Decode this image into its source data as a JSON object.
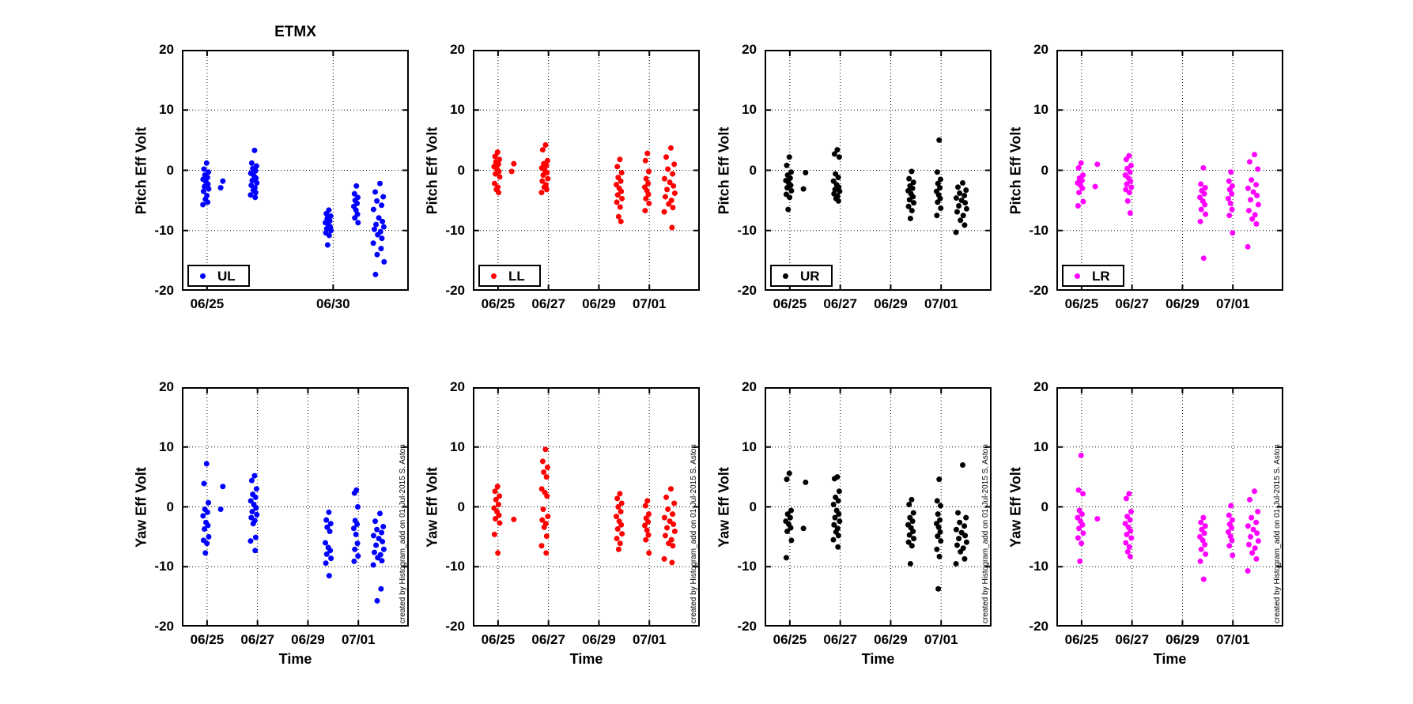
{
  "figure": {
    "title": "ETMX",
    "background": "#ffffff",
    "credit": "created by Histogram_add on 01-Jul-2015 S. Aston"
  },
  "axes": {
    "ylim": [
      -20,
      20
    ],
    "yticks": [
      {
        "v": 20,
        "label": "20"
      },
      {
        "v": 10,
        "label": "10"
      },
      {
        "v": 0,
        "label": "0"
      },
      {
        "v": -10,
        "label": "-10"
      },
      {
        "v": -20,
        "label": "-20"
      }
    ],
    "ygrid": [
      10,
      0,
      -10
    ],
    "xlim": [
      24,
      33
    ],
    "xlabel": "Time",
    "xtick_sets": {
      "two_day": [
        {
          "v": 25,
          "label": "06/25"
        },
        {
          "v": 27,
          "label": "06/27"
        },
        {
          "v": 29,
          "label": "06/29"
        },
        {
          "v": 31,
          "label": "07/01"
        }
      ],
      "five_day": [
        {
          "v": 25,
          "label": "06/25"
        },
        {
          "v": 30,
          "label": "06/30"
        }
      ]
    }
  },
  "chart_data": [
    {
      "type": "scatter",
      "name": "pitch-ul",
      "title": "ETMX",
      "series": "UL",
      "color": "#0000ff",
      "ylabel": "Pitch Eff Volt",
      "xticks": "five_day",
      "legend": true,
      "xlabel": false,
      "credit": false,
      "clusters": [
        {
          "cx": 24.95,
          "dx": 0.12,
          "y": [
            1.2,
            0.2,
            -0.3,
            -0.8,
            -1.2,
            -1.5,
            -1.9,
            -2.3,
            -2.7,
            -3.1,
            -3.5,
            -4.2,
            -4.8,
            -5.3,
            -5.7
          ]
        },
        {
          "cx": 25.6,
          "dx": 0.1,
          "y": [
            -1.8,
            -2.9
          ]
        },
        {
          "cx": 26.85,
          "dx": 0.13,
          "y": [
            3.3,
            1.2,
            0.7,
            0.3,
            -0.1,
            -0.5,
            -0.9,
            -1.3,
            -1.7,
            -2.1,
            -2.5,
            -2.9,
            -3.3,
            -3.7,
            -4.1,
            -4.5
          ]
        },
        {
          "cx": 29.8,
          "dx": 0.12,
          "y": [
            -6.6,
            -7.2,
            -7.6,
            -8.0,
            -8.4,
            -8.7,
            -9.0,
            -9.4,
            -9.7,
            -10.0,
            -10.4,
            -10.8,
            -12.4
          ]
        },
        {
          "cx": 30.9,
          "dx": 0.09,
          "y": [
            -2.6,
            -3.9,
            -4.5,
            -5.0,
            -5.5,
            -6.0,
            -6.6,
            -7.3,
            -7.9,
            -8.7
          ]
        },
        {
          "cx": 31.8,
          "dx": 0.22,
          "y": [
            -2.2,
            -3.6,
            -4.4,
            -5.1,
            -5.8,
            -6.5,
            -7.9,
            -8.5,
            -9.0,
            -9.4,
            -9.8,
            -10.2,
            -10.7,
            -11.3,
            -12.1,
            -13.0,
            -14.0,
            -15.2,
            -17.3
          ]
        }
      ]
    },
    {
      "type": "scatter",
      "name": "pitch-ll",
      "title": "",
      "series": "LL",
      "color": "#ff0000",
      "ylabel": "Pitch Eff Volt",
      "xticks": "two_day",
      "legend": true,
      "xlabel": false,
      "credit": false,
      "clusters": [
        {
          "cx": 24.95,
          "dx": 0.12,
          "y": [
            3.0,
            2.3,
            1.8,
            1.4,
            1.0,
            0.6,
            0.2,
            -0.2,
            -0.6,
            -1.1,
            -2.2,
            -2.8,
            -3.2,
            -3.7
          ]
        },
        {
          "cx": 25.6,
          "dx": 0.1,
          "y": [
            1.1,
            -0.2
          ]
        },
        {
          "cx": 26.85,
          "dx": 0.13,
          "y": [
            4.2,
            3.4,
            1.6,
            1.1,
            0.8,
            0.4,
            0.0,
            -0.4,
            -0.8,
            -1.4,
            -1.8,
            -2.4,
            -2.8,
            -3.2,
            -3.7
          ]
        },
        {
          "cx": 29.8,
          "dx": 0.12,
          "y": [
            1.8,
            0.6,
            -0.4,
            -1.2,
            -1.8,
            -2.4,
            -3.0,
            -3.5,
            -4.1,
            -4.7,
            -5.3,
            -6.1,
            -7.7,
            -8.5
          ]
        },
        {
          "cx": 30.9,
          "dx": 0.09,
          "y": [
            2.8,
            1.6,
            -0.2,
            -1.4,
            -2.2,
            -2.8,
            -3.4,
            -4.0,
            -4.7,
            -5.5,
            -6.7
          ]
        },
        {
          "cx": 31.8,
          "dx": 0.22,
          "y": [
            3.7,
            2.2,
            1.0,
            0.2,
            -0.6,
            -1.4,
            -2.0,
            -2.6,
            -3.2,
            -3.8,
            -4.4,
            -5.0,
            -5.6,
            -6.2,
            -6.9,
            -9.5
          ]
        }
      ]
    },
    {
      "type": "scatter",
      "name": "pitch-ur",
      "title": "",
      "series": "UR",
      "color": "#000000",
      "ylabel": "Pitch Eff Volt",
      "xticks": "two_day",
      "legend": true,
      "xlabel": false,
      "credit": false,
      "clusters": [
        {
          "cx": 24.95,
          "dx": 0.12,
          "y": [
            2.2,
            0.8,
            -0.3,
            -0.8,
            -1.3,
            -1.7,
            -2.1,
            -2.5,
            -2.9,
            -3.4,
            -4.0,
            -4.5,
            -6.5
          ]
        },
        {
          "cx": 25.6,
          "dx": 0.1,
          "y": [
            -0.4,
            -3.1
          ]
        },
        {
          "cx": 26.85,
          "dx": 0.13,
          "y": [
            3.4,
            2.7,
            2.2,
            -0.6,
            -1.2,
            -1.8,
            -2.4,
            -2.8,
            -3.2,
            -3.5,
            -3.9,
            -4.3,
            -4.7,
            -5.1
          ]
        },
        {
          "cx": 29.8,
          "dx": 0.12,
          "y": [
            -0.2,
            -1.4,
            -2.0,
            -2.6,
            -3.0,
            -3.4,
            -3.9,
            -4.4,
            -4.9,
            -5.4,
            -6.0,
            -6.7,
            -8.0
          ]
        },
        {
          "cx": 30.9,
          "dx": 0.09,
          "y": [
            5.0,
            -0.3,
            -1.5,
            -2.2,
            -2.9,
            -3.5,
            -4.1,
            -4.7,
            -5.3,
            -6.3,
            -7.5
          ]
        },
        {
          "cx": 31.8,
          "dx": 0.22,
          "y": [
            -2.1,
            -2.8,
            -3.3,
            -3.8,
            -4.2,
            -4.6,
            -5.0,
            -5.4,
            -5.9,
            -6.4,
            -6.9,
            -7.5,
            -8.3,
            -9.1,
            -10.3
          ]
        }
      ]
    },
    {
      "type": "scatter",
      "name": "pitch-lr",
      "title": "",
      "series": "LR",
      "color": "#ff00ff",
      "ylabel": "Pitch Eff Volt",
      "xticks": "two_day",
      "legend": true,
      "xlabel": false,
      "credit": false,
      "clusters": [
        {
          "cx": 24.95,
          "dx": 0.12,
          "y": [
            1.2,
            0.4,
            -0.8,
            -1.3,
            -1.7,
            -2.1,
            -2.5,
            -3.0,
            -3.7,
            -5.2,
            -5.9
          ]
        },
        {
          "cx": 25.6,
          "dx": 0.1,
          "y": [
            1.0,
            -2.7
          ]
        },
        {
          "cx": 26.85,
          "dx": 0.13,
          "y": [
            2.4,
            1.8,
            0.8,
            0.3,
            -0.3,
            -0.8,
            -1.3,
            -1.8,
            -2.3,
            -2.8,
            -3.2,
            -3.7,
            -5.1,
            -7.1
          ]
        },
        {
          "cx": 29.8,
          "dx": 0.12,
          "y": [
            0.4,
            -2.3,
            -2.9,
            -3.4,
            -3.9,
            -4.5,
            -5.1,
            -5.7,
            -6.5,
            -7.3,
            -8.5,
            -14.6
          ]
        },
        {
          "cx": 30.9,
          "dx": 0.09,
          "y": [
            -0.3,
            -1.8,
            -2.6,
            -3.2,
            -3.9,
            -4.7,
            -5.5,
            -6.5,
            -7.5,
            -10.4
          ]
        },
        {
          "cx": 31.8,
          "dx": 0.22,
          "y": [
            2.6,
            1.4,
            0.2,
            -1.6,
            -2.4,
            -3.0,
            -3.6,
            -4.2,
            -4.9,
            -5.7,
            -6.7,
            -7.4,
            -8.1,
            -8.9,
            -12.7
          ]
        }
      ]
    },
    {
      "type": "scatter",
      "name": "yaw-ul",
      "title": "",
      "series": "UL",
      "color": "#0000ff",
      "ylabel": "Yaw Eff Volt",
      "xticks": "two_day",
      "legend": false,
      "xlabel": true,
      "credit": true,
      "clusters": [
        {
          "cx": 24.95,
          "dx": 0.12,
          "y": [
            7.2,
            3.9,
            0.7,
            -0.4,
            -0.9,
            -1.5,
            -2.6,
            -3.1,
            -3.7,
            -5.0,
            -5.6,
            -6.1,
            -7.7
          ]
        },
        {
          "cx": 25.6,
          "dx": 0.1,
          "y": [
            3.4,
            -0.4
          ]
        },
        {
          "cx": 26.85,
          "dx": 0.13,
          "y": [
            5.2,
            4.4,
            3.0,
            2.1,
            1.6,
            1.0,
            0.4,
            -0.2,
            -0.8,
            -1.3,
            -1.8,
            -2.3,
            -2.8,
            -5.1,
            -5.7,
            -7.3
          ]
        },
        {
          "cx": 29.8,
          "dx": 0.12,
          "y": [
            -0.9,
            -2.2,
            -2.8,
            -3.4,
            -4.1,
            -6.0,
            -6.8,
            -7.3,
            -7.9,
            -8.6,
            -9.4,
            -11.5
          ]
        },
        {
          "cx": 30.9,
          "dx": 0.09,
          "y": [
            2.8,
            2.3,
            0.0,
            -2.3,
            -2.9,
            -3.6,
            -4.6,
            -6.1,
            -7.1,
            -8.2,
            -9.1
          ]
        },
        {
          "cx": 31.8,
          "dx": 0.22,
          "y": [
            -1.1,
            -2.4,
            -3.3,
            -3.8,
            -4.3,
            -4.8,
            -5.3,
            -5.8,
            -6.4,
            -7.1,
            -7.6,
            -8.0,
            -8.5,
            -9.0,
            -9.7,
            -13.7,
            -15.7
          ]
        }
      ]
    },
    {
      "type": "scatter",
      "name": "yaw-ll",
      "title": "",
      "series": "LL",
      "color": "#ff0000",
      "ylabel": "Yaw Eff Volt",
      "xticks": "two_day",
      "legend": false,
      "xlabel": true,
      "credit": true,
      "clusters": [
        {
          "cx": 24.95,
          "dx": 0.12,
          "y": [
            3.4,
            2.6,
            1.8,
            1.2,
            0.4,
            -0.2,
            -0.8,
            -1.4,
            -2.0,
            -2.7,
            -4.6,
            -7.7
          ]
        },
        {
          "cx": 25.6,
          "dx": 0.1,
          "y": [
            -2.1
          ]
        },
        {
          "cx": 26.85,
          "dx": 0.13,
          "y": [
            9.6,
            7.6,
            6.6,
            5.8,
            5.0,
            3.0,
            2.4,
            1.8,
            -0.4,
            -1.6,
            -2.2,
            -2.8,
            -3.4,
            -4.9,
            -6.5,
            -7.7
          ]
        },
        {
          "cx": 29.8,
          "dx": 0.12,
          "y": [
            2.2,
            1.4,
            0.6,
            0.0,
            -0.8,
            -1.6,
            -2.4,
            -3.0,
            -3.7,
            -4.5,
            -5.3,
            -6.1,
            -7.1
          ]
        },
        {
          "cx": 30.9,
          "dx": 0.09,
          "y": [
            1.0,
            0.2,
            -1.2,
            -1.9,
            -2.5,
            -3.1,
            -3.9,
            -4.7,
            -5.5,
            -7.7
          ]
        },
        {
          "cx": 31.8,
          "dx": 0.22,
          "y": [
            3.0,
            1.6,
            0.6,
            -0.4,
            -1.2,
            -1.8,
            -2.4,
            -2.9,
            -3.5,
            -4.1,
            -4.8,
            -5.5,
            -6.1,
            -6.5,
            -8.7,
            -9.3
          ]
        }
      ]
    },
    {
      "type": "scatter",
      "name": "yaw-ur",
      "title": "",
      "series": "UR",
      "color": "#000000",
      "ylabel": "Yaw Eff Volt",
      "xticks": "two_day",
      "legend": false,
      "xlabel": true,
      "credit": true,
      "clusters": [
        {
          "cx": 24.95,
          "dx": 0.12,
          "y": [
            5.6,
            4.6,
            -0.6,
            -1.2,
            -1.8,
            -2.4,
            -2.9,
            -3.5,
            -4.1,
            -5.6,
            -8.5
          ]
        },
        {
          "cx": 25.6,
          "dx": 0.1,
          "y": [
            4.1,
            -3.6
          ]
        },
        {
          "cx": 26.85,
          "dx": 0.13,
          "y": [
            5.0,
            4.7,
            2.6,
            1.6,
            1.0,
            0.4,
            -0.6,
            -1.2,
            -1.8,
            -2.4,
            -3.0,
            -3.6,
            -4.2,
            -4.8,
            -5.5,
            -6.7
          ]
        },
        {
          "cx": 29.8,
          "dx": 0.12,
          "y": [
            1.2,
            0.4,
            -1.0,
            -1.8,
            -2.4,
            -3.0,
            -3.5,
            -4.1,
            -4.7,
            -5.3,
            -5.9,
            -6.5,
            -9.5
          ]
        },
        {
          "cx": 30.9,
          "dx": 0.09,
          "y": [
            4.6,
            1.0,
            0.2,
            -1.2,
            -2.2,
            -2.8,
            -3.4,
            -4.2,
            -4.9,
            -5.7,
            -7.1,
            -8.3,
            -13.7
          ]
        },
        {
          "cx": 31.8,
          "dx": 0.22,
          "y": [
            7.0,
            -1.0,
            -1.8,
            -2.6,
            -3.2,
            -3.8,
            -4.3,
            -4.8,
            -5.3,
            -5.9,
            -6.4,
            -6.9,
            -7.5,
            -8.7,
            -9.5
          ]
        }
      ]
    },
    {
      "type": "scatter",
      "name": "yaw-lr",
      "title": "",
      "series": "LR",
      "color": "#ff00ff",
      "ylabel": "Yaw Eff Volt",
      "xticks": "two_day",
      "legend": false,
      "xlabel": true,
      "credit": true,
      "clusters": [
        {
          "cx": 24.95,
          "dx": 0.12,
          "y": [
            8.6,
            2.8,
            2.2,
            -0.6,
            -1.2,
            -1.8,
            -2.4,
            -3.0,
            -3.6,
            -4.4,
            -5.2,
            -6.1,
            -9.1
          ]
        },
        {
          "cx": 25.6,
          "dx": 0.1,
          "y": [
            -2.0
          ]
        },
        {
          "cx": 26.85,
          "dx": 0.13,
          "y": [
            2.2,
            1.4,
            -0.8,
            -1.6,
            -2.2,
            -2.8,
            -3.4,
            -4.0,
            -4.6,
            -5.2,
            -6.0,
            -6.7,
            -7.5,
            -8.3
          ]
        },
        {
          "cx": 29.8,
          "dx": 0.12,
          "y": [
            -1.8,
            -2.6,
            -3.2,
            -3.8,
            -4.4,
            -5.0,
            -5.6,
            -6.3,
            -7.1,
            -7.9,
            -9.1,
            -12.1
          ]
        },
        {
          "cx": 30.9,
          "dx": 0.09,
          "y": [
            0.2,
            -1.4,
            -2.2,
            -2.9,
            -3.5,
            -4.2,
            -4.9,
            -5.6,
            -6.5,
            -8.1
          ]
        },
        {
          "cx": 31.8,
          "dx": 0.22,
          "y": [
            2.6,
            1.2,
            -0.8,
            -1.8,
            -2.6,
            -3.2,
            -3.8,
            -4.4,
            -5.0,
            -5.7,
            -6.3,
            -6.9,
            -7.7,
            -8.7,
            -10.7
          ]
        }
      ]
    }
  ]
}
